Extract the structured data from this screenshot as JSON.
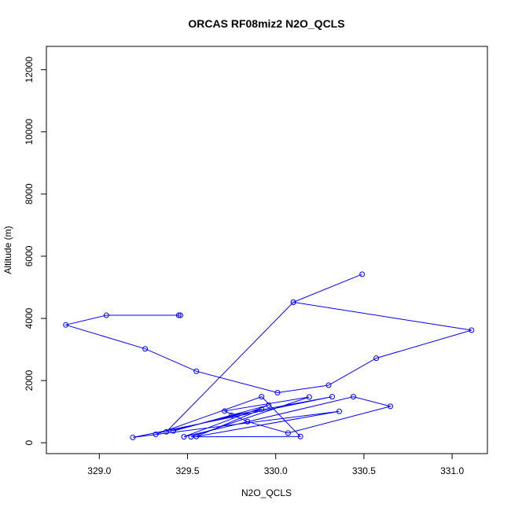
{
  "chart_data": {
    "type": "line",
    "title": "ORCAS RF08miz2 N2O_QCLS",
    "xlabel": "N2O_QCLS",
    "ylabel": "Altitude (m)",
    "xlim": [
      328.7,
      331.2
    ],
    "ylim": [
      -350,
      12750
    ],
    "xticks": [
      329.0,
      329.5,
      330.0,
      330.5,
      331.0
    ],
    "xtick_labels": [
      "329.0",
      "329.5",
      "330.0",
      "330.5",
      "331.0"
    ],
    "yticks": [
      0,
      2000,
      4000,
      6000,
      8000,
      10000,
      12000
    ],
    "ytick_labels": [
      "0",
      "2000",
      "4000",
      "6000",
      "8000",
      "10000",
      "12000"
    ],
    "grid": false,
    "series": [
      {
        "color": "#0000ff",
        "marker": "open-circle",
        "x": [
          329.45,
          329.46,
          329.04,
          328.81,
          329.26,
          329.55,
          330.01,
          330.3,
          330.57,
          331.11,
          330.1,
          330.49,
          330.1,
          329.38,
          329.92,
          329.55,
          330.36,
          329.19,
          330.32,
          329.75,
          329.42,
          329.96,
          329.48,
          330.44,
          330.65,
          330.07,
          329.84,
          329.71,
          330.19,
          329.52,
          330.14,
          329.92,
          329.32
        ],
        "y": [
          4100,
          4100,
          4100,
          3790,
          3020,
          2300,
          1610,
          1850,
          2720,
          3620,
          4520,
          5420,
          4520,
          350,
          1080,
          200,
          1010,
          170,
          1480,
          880,
          380,
          1210,
          190,
          1480,
          1170,
          310,
          680,
          1020,
          1470,
          190,
          200,
          1480,
          270
        ]
      }
    ]
  }
}
